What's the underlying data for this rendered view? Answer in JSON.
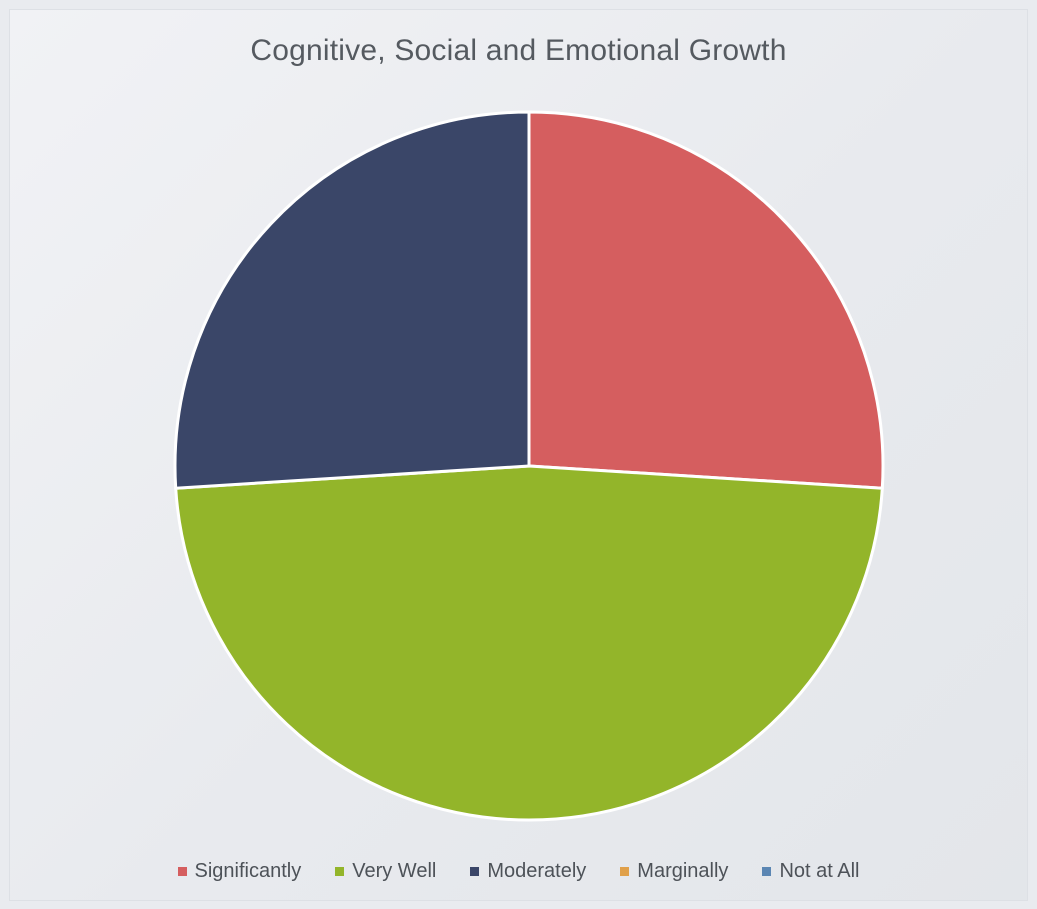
{
  "chart_data": {
    "type": "pie",
    "title": "Cognitive, Social and Emotional Growth",
    "legend_position": "bottom",
    "categories": [
      "Significantly",
      "Very Well",
      "Moderately",
      "Marginally",
      "Not at All"
    ],
    "values": [
      26,
      48,
      26,
      0,
      0
    ],
    "colors": [
      "#d55e5f",
      "#93b52a",
      "#3a4668",
      "#e0a04a",
      "#5b86b3"
    ]
  }
}
